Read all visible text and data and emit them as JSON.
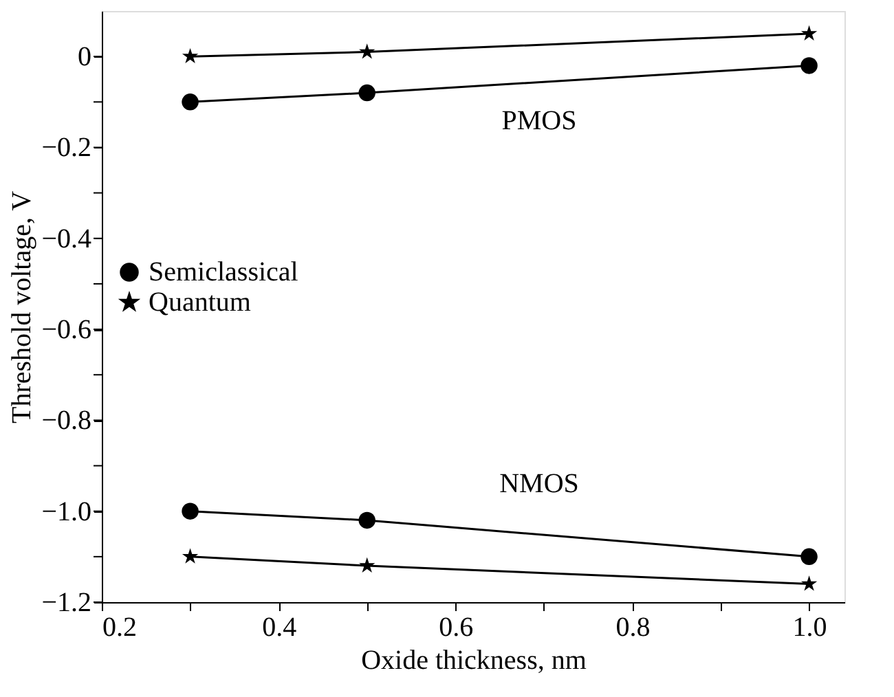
{
  "chart_data": {
    "type": "line",
    "xlabel": "Oxide thickness, nm",
    "ylabel": "Threshold voltage, V",
    "xlim": [
      0.2,
      1.04
    ],
    "ylim": [
      -1.2,
      0.1
    ],
    "xticks": [
      {
        "value": 0.2,
        "label": "0.2"
      },
      {
        "value": 0.3,
        "label": null
      },
      {
        "value": 0.4,
        "label": "0.4"
      },
      {
        "value": 0.5,
        "label": null
      },
      {
        "value": 0.6,
        "label": "0.6"
      },
      {
        "value": 0.7,
        "label": null
      },
      {
        "value": 0.8,
        "label": "0.8"
      },
      {
        "value": 0.9,
        "label": null
      },
      {
        "value": 1.0,
        "label": "1.0"
      }
    ],
    "yticks": [
      {
        "value": -1.2,
        "label": "−1.2"
      },
      {
        "value": -1.1,
        "label": null
      },
      {
        "value": -1.0,
        "label": "−1.0"
      },
      {
        "value": -0.9,
        "label": null
      },
      {
        "value": -0.8,
        "label": "−0.8"
      },
      {
        "value": -0.7,
        "label": null
      },
      {
        "value": -0.6,
        "label": "−0.6"
      },
      {
        "value": -0.5,
        "label": null
      },
      {
        "value": -0.4,
        "label": "−0.4"
      },
      {
        "value": -0.3,
        "label": null
      },
      {
        "value": -0.2,
        "label": "−0.2"
      },
      {
        "value": -0.1,
        "label": null
      },
      {
        "value": 0,
        "label": "0"
      }
    ],
    "grid": false,
    "legend": "left",
    "line_style": "solid",
    "series": [
      {
        "name": "Semiclassical",
        "color": "#000000",
        "marker": "circle",
        "x": [
          0.3,
          0.5,
          1.0
        ],
        "values": [
          -0.1,
          -0.08,
          -0.02
        ]
      },
      {
        "name": "Quantum",
        "color": "#000000",
        "marker": "star",
        "x": [
          0.3,
          0.5,
          1.0
        ],
        "values": [
          0.0,
          0.01,
          0.05
        ]
      },
      {
        "color": "#000000",
        "marker": "circle",
        "x": [
          0.3,
          0.5,
          1.0
        ],
        "values": [
          -1.0,
          -1.02,
          -1.1
        ]
      },
      {
        "color": "#000000",
        "marker": "star",
        "x": [
          0.3,
          0.5,
          1.0
        ],
        "values": [
          -1.1,
          -1.12,
          -1.16
        ]
      }
    ],
    "annotations": [
      "PMOS",
      "NMOS"
    ]
  }
}
